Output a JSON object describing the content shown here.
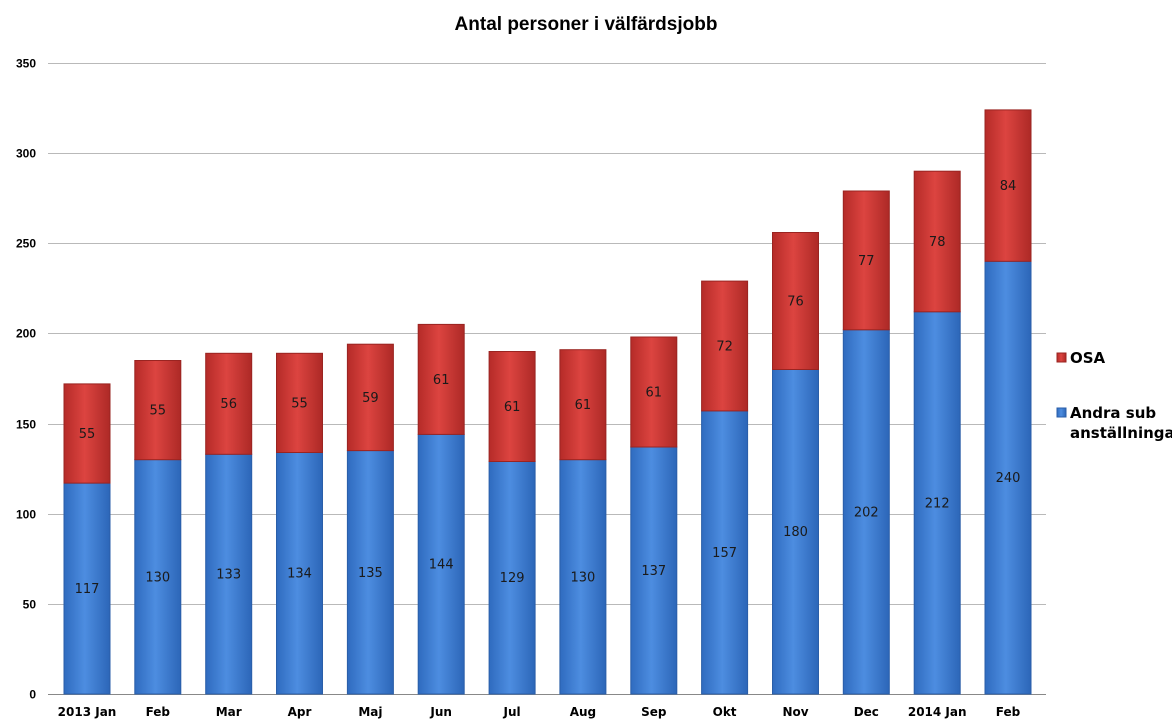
{
  "chart_data": {
    "type": "bar",
    "stacked": true,
    "title": "Antal personer i välfärdsjobb",
    "xlabel": "",
    "ylabel": "",
    "ylim": [
      0,
      350
    ],
    "yticks": [
      0,
      50,
      100,
      150,
      200,
      250,
      300,
      350
    ],
    "grid": true,
    "legend_position": "right",
    "categories": [
      "2013 Jan",
      "Feb",
      "Mar",
      "Apr",
      "Maj",
      "Jun",
      "Jul",
      "Aug",
      "Sep",
      "Okt",
      "Nov",
      "Dec",
      "2014 Jan",
      "Feb"
    ],
    "series": [
      {
        "name": "Andra sub anställninga",
        "legend_lines": [
          "Andra sub",
          "anställninga"
        ],
        "color": "#4a86d8",
        "values": [
          117,
          130,
          133,
          134,
          135,
          144,
          129,
          130,
          137,
          157,
          180,
          202,
          212,
          240
        ]
      },
      {
        "name": "OSA",
        "legend_lines": [
          "OSA"
        ],
        "color": "#d03a36",
        "values": [
          55,
          55,
          56,
          55,
          59,
          61,
          61,
          61,
          61,
          72,
          76,
          77,
          78,
          84
        ]
      }
    ]
  }
}
